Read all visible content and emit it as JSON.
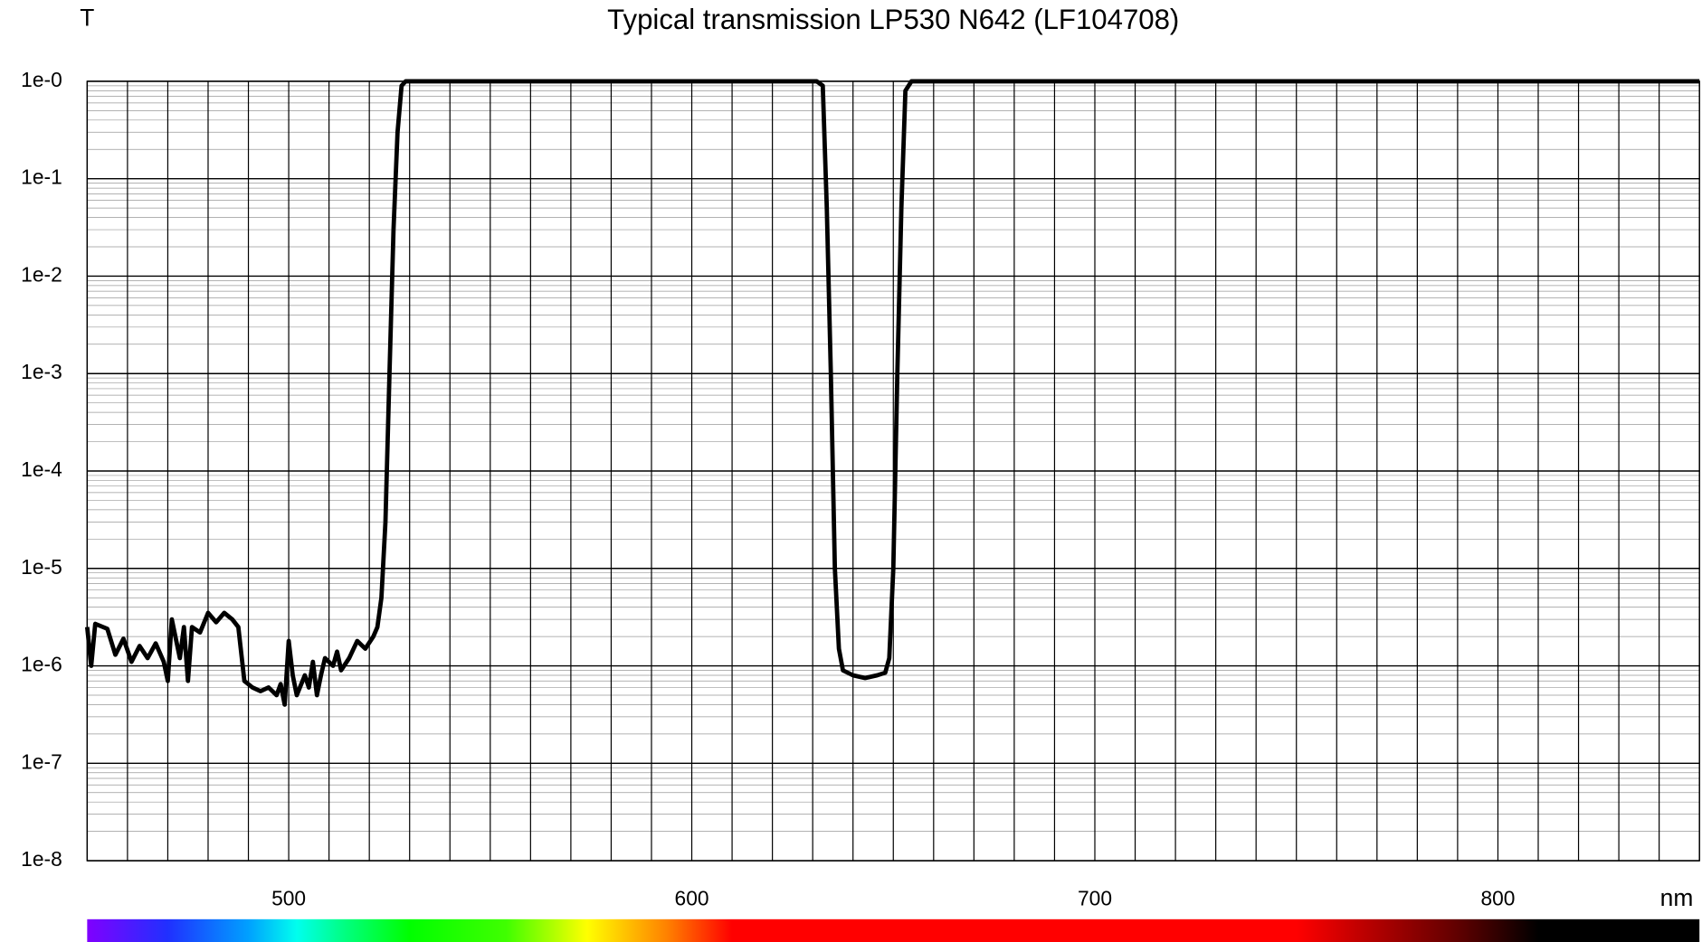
{
  "chart_data": {
    "type": "line",
    "title": "Typical transmission LP530 N642 (LF104708)",
    "y_label": "T",
    "x_label": "nm",
    "log_y": true,
    "grid": true,
    "xlim": [
      450,
      850
    ],
    "xticks": [
      500,
      600,
      700,
      800
    ],
    "xminorticks": [
      450,
      460,
      470,
      480,
      490,
      500,
      510,
      520,
      530,
      540,
      550,
      560,
      570,
      580,
      590,
      600,
      610,
      620,
      630,
      640,
      650,
      660,
      670,
      680,
      690,
      700,
      710,
      720,
      730,
      740,
      750,
      760,
      770,
      780,
      790,
      800,
      810,
      820,
      830,
      840,
      850
    ],
    "ylim": [
      1e-08,
      1
    ],
    "yticks": [
      {
        "value": 1,
        "label": "1e-0"
      },
      {
        "value": 0.1,
        "label": "1e-1"
      },
      {
        "value": 0.01,
        "label": "1e-2"
      },
      {
        "value": 0.001,
        "label": "1e-3"
      },
      {
        "value": 0.0001,
        "label": "1e-4"
      },
      {
        "value": 1e-05,
        "label": "1e-5"
      },
      {
        "value": 1e-06,
        "label": "1e-6"
      },
      {
        "value": 1e-07,
        "label": "1e-7"
      },
      {
        "value": 1e-08,
        "label": "1e-8"
      }
    ],
    "series": [
      {
        "color": "#000000",
        "x": [
          450,
          451,
          452,
          455,
          457,
          459,
          461,
          463,
          465,
          467,
          469,
          470,
          471,
          473,
          474,
          475,
          476,
          478,
          480,
          482,
          484,
          486,
          487.5,
          489,
          491,
          493,
          495,
          497,
          498,
          499,
          500,
          501,
          502,
          504,
          505,
          506,
          507,
          508,
          509,
          511,
          512,
          513,
          515,
          517,
          519,
          521,
          522,
          523,
          524,
          525,
          526,
          527,
          528,
          529,
          600,
          631,
          632.5,
          633.5,
          634.5,
          635.5,
          636.5,
          637.5,
          640,
          643,
          646,
          648,
          649,
          650,
          651,
          652,
          653,
          654.5,
          700,
          850
        ],
        "values": [
          2.5e-06,
          1e-06,
          2.7e-06,
          2.4e-06,
          1.3e-06,
          1.9e-06,
          1.1e-06,
          1.6e-06,
          1.2e-06,
          1.7e-06,
          1.1e-06,
          7e-07,
          3e-06,
          1.2e-06,
          2.5e-06,
          7e-07,
          2.5e-06,
          2.2e-06,
          3.5e-06,
          2.8e-06,
          3.5e-06,
          3e-06,
          2.5e-06,
          7e-07,
          6e-07,
          5.5e-07,
          6e-07,
          5e-07,
          6.5e-07,
          4e-07,
          1.8e-06,
          8e-07,
          5e-07,
          8e-07,
          6e-07,
          1.1e-06,
          5e-07,
          8e-07,
          1.2e-06,
          1e-06,
          1.4e-06,
          9e-07,
          1.2e-06,
          1.8e-06,
          1.5e-06,
          2e-06,
          2.5e-06,
          5e-06,
          3e-05,
          0.001,
          0.03,
          0.3,
          0.9,
          1,
          1,
          1,
          0.9,
          0.05,
          0.001,
          1e-05,
          1.5e-06,
          9e-07,
          8e-07,
          7.5e-07,
          8e-07,
          8.5e-07,
          1.2e-06,
          1e-05,
          0.001,
          0.05,
          0.8,
          1,
          1,
          1
        ]
      }
    ]
  }
}
